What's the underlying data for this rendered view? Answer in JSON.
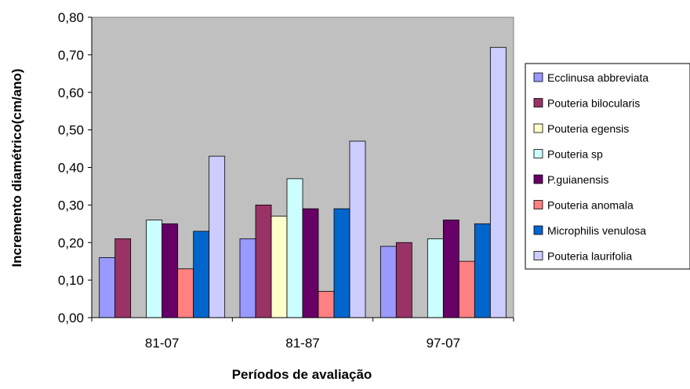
{
  "chart_data": {
    "type": "bar",
    "title": "",
    "xlabel": "Períodos de avaliação",
    "ylabel": "Incremento diamétrico(cm/ano)",
    "ylim": [
      0,
      0.8
    ],
    "yticks": [
      "0,00",
      "0,10",
      "0,20",
      "0,30",
      "0,40",
      "0,50",
      "0,60",
      "0,70",
      "0,80"
    ],
    "grid": false,
    "legend_position": "right",
    "plot_background": "#c0c0c0",
    "categories": [
      "81-07",
      "81-87",
      "97-07"
    ],
    "series": [
      {
        "name": "Ecclinusa abbreviata",
        "color": "#9999ff",
        "values": [
          0.16,
          0.21,
          0.19
        ]
      },
      {
        "name": "Pouteria bilocularis",
        "color": "#993366",
        "values": [
          0.21,
          0.3,
          0.2
        ]
      },
      {
        "name": "Pouteria egensis",
        "color": "#ffffcc",
        "values": [
          null,
          0.27,
          null
        ]
      },
      {
        "name": "Pouteria sp",
        "color": "#ccffff",
        "values": [
          0.26,
          0.37,
          0.21
        ]
      },
      {
        "name": "P.guianensis",
        "color": "#660066",
        "values": [
          0.25,
          0.29,
          0.26
        ]
      },
      {
        "name": "Pouteria anomala",
        "color": "#ff8080",
        "values": [
          0.13,
          0.07,
          0.15
        ]
      },
      {
        "name": "Microphilis venulosa",
        "color": "#0066cc",
        "values": [
          0.23,
          0.29,
          0.25
        ]
      },
      {
        "name": "Pouteria laurifolia",
        "color": "#ccccff",
        "values": [
          0.43,
          0.47,
          0.72
        ]
      }
    ]
  }
}
